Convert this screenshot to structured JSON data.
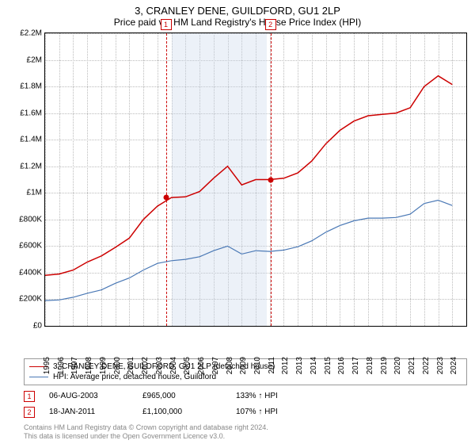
{
  "title_line1": "3, CRANLEY DENE, GUILDFORD, GU1 2LP",
  "title_line2": "Price paid vs. HM Land Registry's House Price Index (HPI)",
  "chart": {
    "type": "line",
    "background_color": "#ffffff",
    "grid_color": "#bbbbbb",
    "border_color": "#000000",
    "x_years": [
      1995,
      1996,
      1997,
      1998,
      1999,
      2000,
      2001,
      2002,
      2003,
      2004,
      2005,
      2006,
      2007,
      2008,
      2009,
      2010,
      2011,
      2012,
      2013,
      2014,
      2015,
      2016,
      2017,
      2018,
      2019,
      2020,
      2021,
      2022,
      2023,
      2024
    ],
    "x_min": 1995,
    "x_max": 2025,
    "y_ticks": [
      0,
      200000,
      400000,
      600000,
      800000,
      1000000,
      1200000,
      1400000,
      1600000,
      1800000,
      2000000,
      2200000
    ],
    "y_tick_labels": [
      "£0",
      "£200K",
      "£400K",
      "£600K",
      "£800K",
      "£1M",
      "£1.2M",
      "£1.4M",
      "£1.6M",
      "£1.8M",
      "£2M",
      "£2.2M"
    ],
    "y_min": 0,
    "y_max": 2200000,
    "shade_band": {
      "x_start": 2004,
      "x_end": 2010.8,
      "color": "rgba(200,215,235,0.35)"
    },
    "dashed_verticals": [
      {
        "x": 2003.6,
        "label": "1"
      },
      {
        "x": 2011.05,
        "label": "2"
      }
    ],
    "label_fontsize": 10,
    "title_fontsize": 13,
    "sale_points": [
      {
        "x": 2003.6,
        "y": 965000,
        "color": "#cc0000"
      },
      {
        "x": 2011.05,
        "y": 1100000,
        "color": "#cc0000"
      }
    ],
    "series": [
      {
        "name": "price_paid",
        "color": "#cc0000",
        "line_width": 1.5,
        "values": [
          380000,
          390000,
          420000,
          480000,
          525000,
          590000,
          660000,
          800000,
          900000,
          965000,
          970000,
          1010000,
          1110000,
          1200000,
          1060000,
          1100000,
          1100000,
          1110000,
          1150000,
          1240000,
          1370000,
          1470000,
          1540000,
          1580000,
          1590000,
          1600000,
          1640000,
          1800000,
          1880000,
          1815000
        ]
      },
      {
        "name": "hpi",
        "color": "#4a78b5",
        "line_width": 1.2,
        "values": [
          190000,
          195000,
          215000,
          245000,
          270000,
          320000,
          360000,
          420000,
          470000,
          490000,
          500000,
          520000,
          565000,
          600000,
          540000,
          565000,
          560000,
          570000,
          595000,
          640000,
          705000,
          755000,
          790000,
          810000,
          810000,
          815000,
          840000,
          920000,
          945000,
          905000
        ]
      }
    ]
  },
  "legend": {
    "items": [
      {
        "color": "#cc0000",
        "label": "3, CRANLEY DENE, GUILDFORD, GU1 2LP (detached house)"
      },
      {
        "color": "#4a78b5",
        "label": "HPI: Average price, detached house, Guildford"
      }
    ]
  },
  "sales": [
    {
      "marker": "1",
      "date": "06-AUG-2003",
      "price": "£965,000",
      "delta": "133% ↑ HPI"
    },
    {
      "marker": "2",
      "date": "18-JAN-2011",
      "price": "£1,100,000",
      "delta": "107% ↑ HPI"
    }
  ],
  "footnote_line1": "Contains HM Land Registry data © Crown copyright and database right 2024.",
  "footnote_line2": "This data is licensed under the Open Government Licence v3.0."
}
